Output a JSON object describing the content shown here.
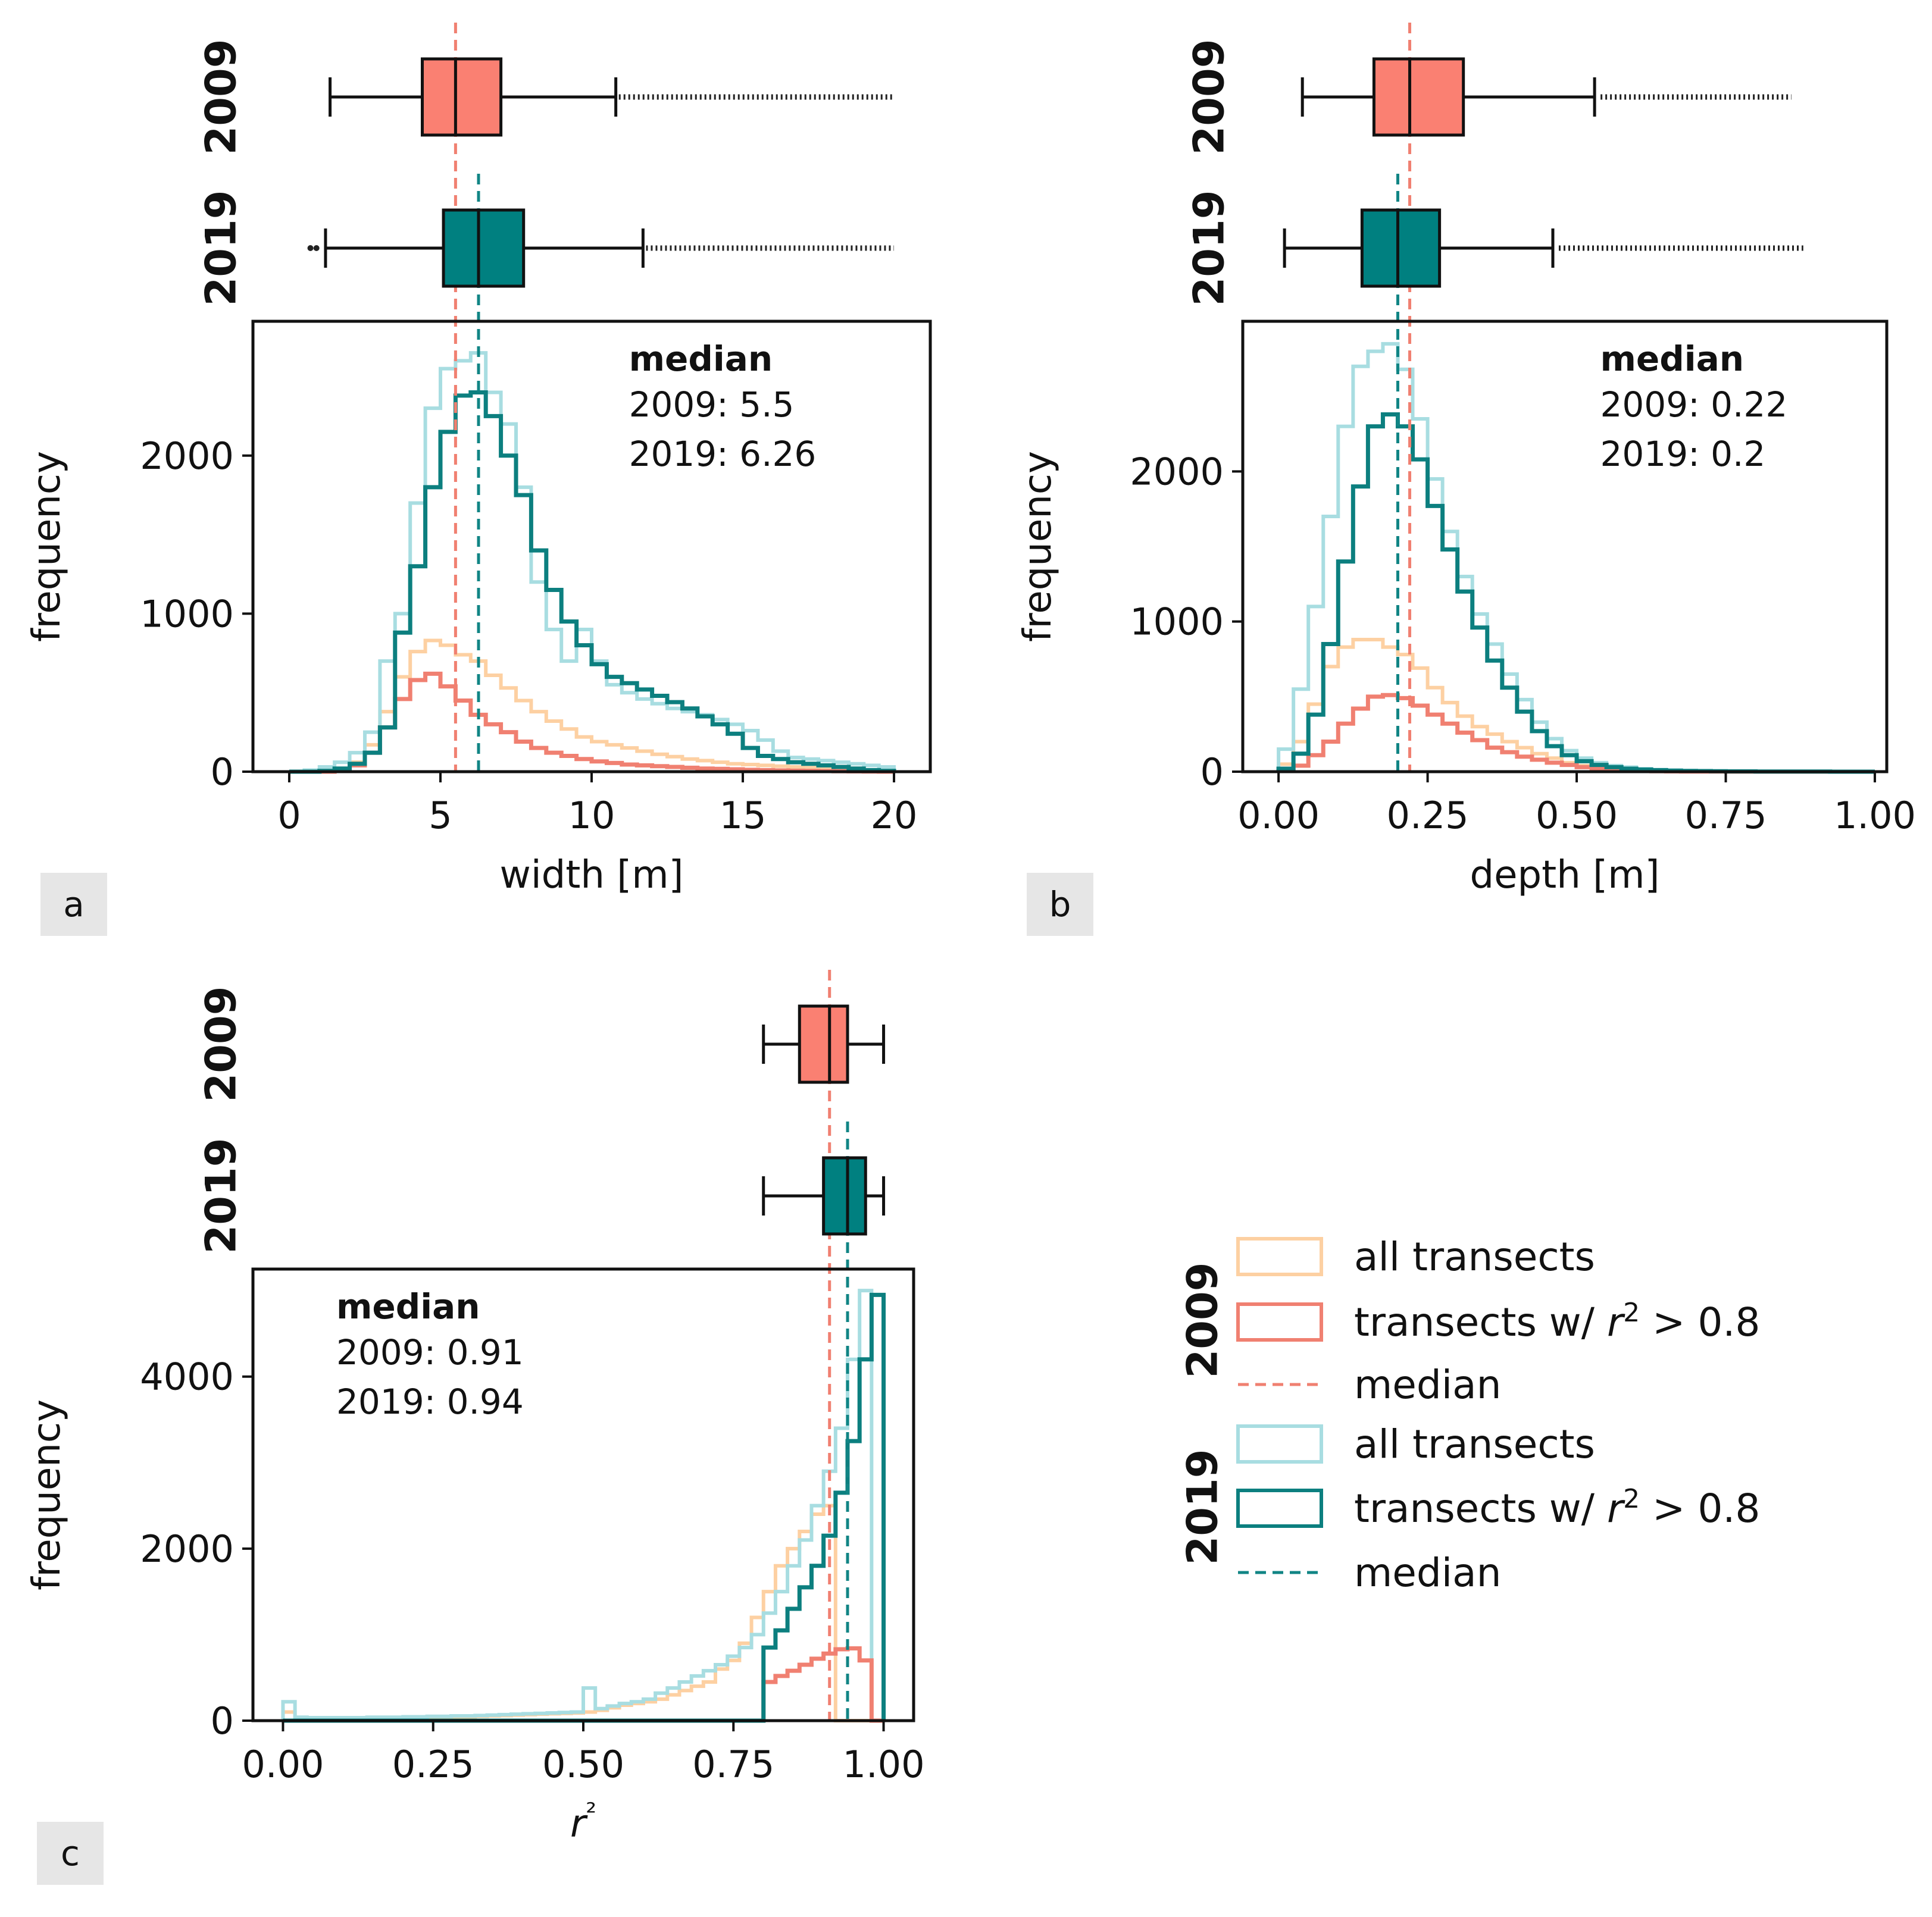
{
  "colors": {
    "2009_all": "#fdd0a2",
    "2009_r2": "#f08071",
    "2009_median": "#f08071",
    "2009_box": "#fa8072",
    "2019_all": "#a8dde1",
    "2019_r2": "#0c7f7f",
    "2019_median": "#118585",
    "2019_box": "#008080"
  },
  "chart_data": [
    {
      "panel_label": "a",
      "type": "histogram",
      "xlabel": "width [m]",
      "ylabel": "frequency",
      "xlim": [
        -1.2,
        21.2
      ],
      "ylim": [
        0,
        2850
      ],
      "xticks": [
        0,
        5,
        10,
        15,
        20
      ],
      "xtick_labels": [
        "0",
        "5",
        "10",
        "15",
        "20"
      ],
      "yticks": [
        0,
        1000,
        2000
      ],
      "ytick_labels": [
        "0",
        "1000",
        "2000"
      ],
      "medians": {
        "2009": 5.5,
        "2019": 6.26
      },
      "median_title": "median",
      "median_lines": [
        "2009: 5.5",
        "2019: 6.26"
      ],
      "median_text_pos": "top-right",
      "bin_edges": [
        0,
        0.5,
        1,
        1.5,
        2,
        2.5,
        3,
        3.5,
        4,
        4.5,
        5,
        5.5,
        6,
        6.5,
        7,
        7.5,
        8,
        8.5,
        9,
        9.5,
        10,
        10.5,
        11,
        11.5,
        12,
        12.5,
        13,
        13.5,
        14,
        14.5,
        15,
        15.5,
        16,
        16.5,
        17,
        17.5,
        18,
        18.5,
        19,
        19.5,
        20
      ],
      "series": [
        {
          "name": "2009 all transects",
          "key": "2009_all",
          "values": [
            0,
            0,
            5,
            15,
            60,
            170,
            380,
            600,
            760,
            830,
            800,
            740,
            700,
            610,
            530,
            450,
            380,
            320,
            270,
            220,
            190,
            170,
            150,
            130,
            110,
            95,
            80,
            70,
            60,
            50,
            45,
            40,
            35,
            30,
            25,
            20,
            15,
            10,
            5,
            0
          ]
        },
        {
          "name": "2009 transects w/ r2 > 0.8",
          "key": "2009_r2",
          "values": [
            0,
            0,
            0,
            5,
            40,
            120,
            280,
            460,
            580,
            620,
            540,
            450,
            360,
            300,
            250,
            190,
            150,
            120,
            100,
            80,
            65,
            55,
            45,
            40,
            35,
            30,
            25,
            20,
            18,
            15,
            12,
            10,
            8,
            6,
            5,
            4,
            3,
            2,
            1,
            0
          ]
        },
        {
          "name": "2019 all transects",
          "key": "2019_all",
          "values": [
            0,
            10,
            30,
            60,
            120,
            250,
            700,
            1000,
            1700,
            2300,
            2550,
            2600,
            2650,
            2400,
            2200,
            1800,
            1200,
            900,
            700,
            900,
            700,
            550,
            500,
            460,
            430,
            400,
            380,
            360,
            330,
            300,
            260,
            200,
            130,
            90,
            80,
            70,
            60,
            50,
            40,
            30
          ]
        },
        {
          "name": "2019 transects w/ r2 > 0.8",
          "key": "2019_r2",
          "values": [
            0,
            0,
            5,
            20,
            50,
            120,
            280,
            880,
            1300,
            1800,
            2150,
            2380,
            2400,
            2250,
            2000,
            1750,
            1400,
            1150,
            950,
            800,
            680,
            600,
            560,
            520,
            480,
            440,
            400,
            350,
            300,
            240,
            150,
            100,
            80,
            60,
            50,
            40,
            30,
            20,
            10,
            5
          ]
        }
      ],
      "boxplots": [
        {
          "year": "2009",
          "key": "2009_box",
          "whisker_low": 1.35,
          "q1": 4.4,
          "median": 5.5,
          "q3": 7.0,
          "whisker_high": 10.8,
          "outliers_from": 10.9,
          "outliers_to": 20.0
        },
        {
          "year": "2019",
          "key": "2019_box",
          "whisker_low": 1.2,
          "q1": 5.1,
          "median": 6.26,
          "q3": 7.75,
          "whisker_high": 11.7,
          "outliers_from": 11.8,
          "outliers_to": 20.0,
          "low_outliers": [
            0.7,
            0.9
          ]
        }
      ]
    },
    {
      "panel_label": "b",
      "type": "histogram",
      "xlabel": "depth [m]",
      "ylabel": "frequency",
      "xlim": [
        -0.06,
        1.02
      ],
      "ylim": [
        0,
        3000
      ],
      "xticks": [
        0,
        0.25,
        0.5,
        0.75,
        1.0
      ],
      "xtick_labels": [
        "0.00",
        "0.25",
        "0.50",
        "0.75",
        "1.00"
      ],
      "yticks": [
        0,
        1000,
        2000
      ],
      "ytick_labels": [
        "0",
        "1000",
        "2000"
      ],
      "medians": {
        "2009": 0.22,
        "2019": 0.2
      },
      "median_title": "median",
      "median_lines": [
        "2009: 0.22",
        "2019: 0.2"
      ],
      "median_text_pos": "top-right",
      "bin_edges": [
        0,
        0.025,
        0.05,
        0.075,
        0.1,
        0.125,
        0.15,
        0.175,
        0.2,
        0.225,
        0.25,
        0.275,
        0.3,
        0.325,
        0.35,
        0.375,
        0.4,
        0.425,
        0.45,
        0.475,
        0.5,
        0.525,
        0.55,
        0.575,
        0.6,
        0.625,
        0.65,
        0.675,
        0.7,
        0.725,
        0.75,
        0.775,
        0.8,
        0.825,
        0.85,
        0.875,
        0.9,
        0.925,
        0.95,
        0.975,
        1.0
      ],
      "series": [
        {
          "name": "2009 all transects",
          "key": "2009_all",
          "values": [
            50,
            200,
            450,
            700,
            830,
            880,
            880,
            830,
            780,
            690,
            560,
            460,
            370,
            300,
            250,
            200,
            160,
            120,
            90,
            60,
            40,
            25,
            15,
            8,
            5,
            3,
            2,
            1,
            1,
            1,
            0,
            0,
            1,
            0,
            0,
            0,
            0,
            0,
            0,
            0
          ]
        },
        {
          "name": "2009 transects w/ r2 > 0.8",
          "key": "2009_r2",
          "values": [
            5,
            40,
            110,
            200,
            320,
            420,
            500,
            510,
            490,
            440,
            380,
            320,
            260,
            210,
            160,
            130,
            100,
            80,
            60,
            45,
            30,
            20,
            12,
            8,
            5,
            3,
            2,
            1,
            1,
            1,
            0,
            0,
            0,
            0,
            0,
            0,
            0,
            0,
            0,
            0
          ]
        },
        {
          "name": "2019 all transects",
          "key": "2019_all",
          "values": [
            150,
            550,
            1100,
            1700,
            2300,
            2700,
            2800,
            2850,
            2680,
            2350,
            1950,
            1600,
            1300,
            1050,
            850,
            650,
            480,
            330,
            220,
            140,
            90,
            60,
            40,
            30,
            20,
            14,
            10,
            7,
            5,
            4,
            3,
            3,
            2,
            2,
            1,
            1,
            1,
            1,
            0,
            0
          ]
        },
        {
          "name": "2019 transects w/ r2 > 0.8",
          "key": "2019_r2",
          "values": [
            20,
            120,
            380,
            850,
            1400,
            1900,
            2300,
            2380,
            2300,
            2080,
            1770,
            1480,
            1200,
            960,
            740,
            560,
            400,
            270,
            170,
            110,
            70,
            45,
            30,
            20,
            14,
            10,
            7,
            5,
            4,
            3,
            2,
            2,
            1,
            1,
            1,
            1,
            1,
            0,
            0,
            0
          ]
        }
      ],
      "boxplots": [
        {
          "year": "2009",
          "key": "2009_box",
          "whisker_low": 0.04,
          "q1": 0.16,
          "median": 0.22,
          "q3": 0.31,
          "whisker_high": 0.53,
          "outliers_from": 0.54,
          "outliers_to": 0.86
        },
        {
          "year": "2019",
          "key": "2019_box",
          "whisker_low": 0.01,
          "q1": 0.14,
          "median": 0.2,
          "q3": 0.27,
          "whisker_high": 0.46,
          "outliers_from": 0.47,
          "outliers_to": 0.88
        }
      ]
    },
    {
      "panel_label": "c",
      "type": "histogram",
      "xlabel": "r²",
      "ylabel": "frequency",
      "xlim": [
        -0.05,
        1.05
      ],
      "ylim": [
        0,
        5250
      ],
      "xticks": [
        0,
        0.25,
        0.5,
        0.75,
        1.0
      ],
      "xtick_labels": [
        "0.00",
        "0.25",
        "0.50",
        "0.75",
        "1.00"
      ],
      "yticks": [
        0,
        2000,
        4000
      ],
      "ytick_labels": [
        "0",
        "2000",
        "4000"
      ],
      "medians": {
        "2009": 0.91,
        "2019": 0.94
      },
      "median_title": "median",
      "median_lines": [
        "2009: 0.91",
        "2019: 0.94"
      ],
      "median_text_pos": "top-left",
      "bin_edges": [
        0,
        0.02,
        0.04,
        0.06,
        0.08,
        0.1,
        0.12,
        0.14,
        0.16,
        0.18,
        0.2,
        0.22,
        0.24,
        0.26,
        0.28,
        0.3,
        0.32,
        0.34,
        0.36,
        0.38,
        0.4,
        0.42,
        0.44,
        0.46,
        0.48,
        0.5,
        0.52,
        0.54,
        0.56,
        0.58,
        0.6,
        0.62,
        0.64,
        0.66,
        0.68,
        0.7,
        0.72,
        0.74,
        0.76,
        0.78,
        0.8,
        0.82,
        0.84,
        0.86,
        0.88,
        0.9,
        0.92,
        0.94,
        0.96,
        0.98,
        1.0
      ],
      "series": [
        {
          "name": "2009 all transects",
          "key": "2009_all",
          "values": [
            100,
            20,
            20,
            20,
            25,
            25,
            25,
            30,
            30,
            30,
            35,
            35,
            40,
            40,
            45,
            45,
            50,
            55,
            60,
            65,
            70,
            75,
            80,
            85,
            90,
            100,
            120,
            150,
            180,
            200,
            220,
            250,
            300,
            350,
            400,
            450,
            600,
            700,
            900,
            1200,
            1500,
            1800,
            2000,
            2200,
            2400,
            2500,
            0,
            0,
            0,
            0
          ]
        },
        {
          "name": "2009 transects w/ r2 > 0.8",
          "key": "2009_r2",
          "values": [
            0,
            0,
            0,
            0,
            0,
            0,
            0,
            0,
            0,
            0,
            0,
            0,
            0,
            0,
            0,
            0,
            0,
            0,
            0,
            0,
            0,
            0,
            0,
            0,
            0,
            0,
            0,
            0,
            0,
            0,
            0,
            0,
            0,
            0,
            0,
            0,
            0,
            0,
            0,
            0,
            450,
            520,
            580,
            650,
            720,
            780,
            830,
            840,
            700,
            0
          ]
        },
        {
          "name": "2019 all transects",
          "key": "2019_all",
          "values": [
            220,
            40,
            35,
            35,
            35,
            35,
            35,
            40,
            40,
            40,
            45,
            45,
            50,
            50,
            55,
            55,
            60,
            65,
            70,
            75,
            80,
            85,
            90,
            95,
            100,
            380,
            140,
            170,
            200,
            220,
            250,
            320,
            380,
            450,
            520,
            580,
            650,
            750,
            850,
            1000,
            1250,
            1500,
            1800,
            2100,
            2500,
            2900,
            3400,
            4200,
            5000,
            0
          ]
        },
        {
          "name": "2019 transects w/ r2 > 0.8",
          "key": "2019_r2",
          "values": [
            0,
            0,
            0,
            0,
            0,
            0,
            0,
            0,
            0,
            0,
            0,
            0,
            0,
            0,
            0,
            0,
            0,
            0,
            0,
            0,
            0,
            0,
            0,
            0,
            0,
            0,
            0,
            0,
            0,
            0,
            0,
            0,
            0,
            0,
            0,
            0,
            0,
            0,
            0,
            0,
            850,
            1050,
            1300,
            1550,
            1800,
            2150,
            2650,
            3250,
            4200,
            4950
          ]
        }
      ],
      "boxplots": [
        {
          "year": "2009",
          "key": "2009_box",
          "whisker_low": 0.8,
          "q1": 0.86,
          "median": 0.91,
          "q3": 0.94,
          "whisker_high": 1.0
        },
        {
          "year": "2019",
          "key": "2019_box",
          "whisker_low": 0.8,
          "q1": 0.9,
          "median": 0.94,
          "q3": 0.97,
          "whisker_high": 1.0
        }
      ]
    }
  ],
  "legend": {
    "groups": [
      {
        "year": "2009",
        "entries": [
          {
            "kind": "box",
            "key": "2009_all",
            "label": "all transects"
          },
          {
            "kind": "box",
            "key": "2009_r2",
            "label_prefix": "transects w/ ",
            "label_var": "r",
            "label_sup": "2",
            "label_suffix": " > 0.8"
          },
          {
            "kind": "dash",
            "key": "2009_median",
            "label": "median"
          }
        ]
      },
      {
        "year": "2019",
        "entries": [
          {
            "kind": "box",
            "key": "2019_all",
            "label": "all transects"
          },
          {
            "kind": "box",
            "key": "2019_r2",
            "label_prefix": "transects w/ ",
            "label_var": "r",
            "label_sup": "2",
            "label_suffix": " > 0.8"
          },
          {
            "kind": "dash",
            "key": "2019_median",
            "label": "median"
          }
        ]
      }
    ]
  }
}
